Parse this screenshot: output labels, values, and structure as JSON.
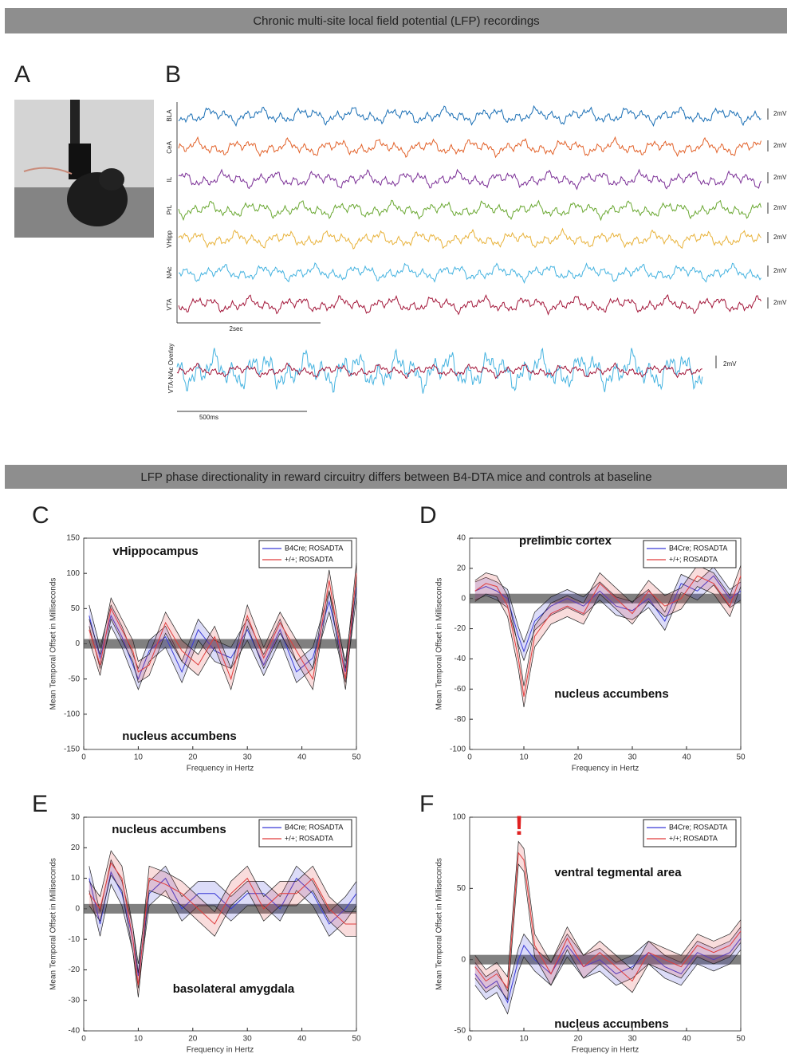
{
  "headers": [
    "Chronic multi-site local field potential (LFP) recordings",
    "LFP phase directionality in reward circuitry differs between B4-DTA mice and controls at baseline"
  ],
  "panel_labels": [
    "A",
    "B"
  ],
  "traces": {
    "channels": [
      {
        "name": "BLA",
        "color": "#1a6fb5"
      },
      {
        "name": "CeA",
        "color": "#e2622a"
      },
      {
        "name": "IL",
        "color": "#7b2f96"
      },
      {
        "name": "PrL",
        "color": "#6aa832"
      },
      {
        "name": "VHipp",
        "color": "#e8b23a"
      },
      {
        "name": "NAc",
        "color": "#45b3e0"
      },
      {
        "name": "VTA",
        "color": "#a3173a"
      }
    ],
    "scale_label": "2mV",
    "time_label": "2sec",
    "overlay": {
      "label": "VTA-NAc Overlay",
      "scale_label": "2mV",
      "time_label": "500ms"
    }
  },
  "chart_data": [
    {
      "type": "line",
      "label": "C",
      "annotations": [
        "vHippocampus",
        "nucleus accumbens"
      ],
      "x_label": "Frequency in Hertz",
      "y_label": "Mean Temporal Offset in Milliseconds",
      "xlim": [
        0,
        50
      ],
      "xticks": [
        0,
        10,
        20,
        30,
        40,
        50
      ],
      "ylim": [
        -150,
        150
      ],
      "yticks": [
        -150,
        -100,
        -50,
        0,
        50,
        100,
        150
      ],
      "legend": "upper right",
      "x": [
        1,
        3,
        5,
        7,
        9,
        10,
        12,
        15,
        18,
        21,
        24,
        27,
        30,
        33,
        36,
        39,
        42,
        45,
        48,
        50
      ],
      "series": [
        {
          "name": "B4Cre; ROSADTA",
          "color": "#3b3bd6",
          "error": 15,
          "values": [
            40,
            -20,
            40,
            10,
            -30,
            -50,
            -10,
            10,
            -40,
            20,
            -10,
            -20,
            20,
            -30,
            20,
            -40,
            -20,
            60,
            -40,
            80
          ]
        },
        {
          "name": "+/+; ROSADTA",
          "color": "#e03c3c",
          "error": 15,
          "values": [
            20,
            -30,
            50,
            20,
            -10,
            -40,
            -30,
            30,
            -10,
            -30,
            10,
            -50,
            40,
            -20,
            30,
            -10,
            -50,
            90,
            -50,
            100
          ]
        }
      ]
    },
    {
      "type": "line",
      "label": "D",
      "annotations": [
        "prelimbic cortex",
        "nucleus accumbens"
      ],
      "x_label": "Frequency in Hertz",
      "y_label": "Mean Temporal Offset in Milliseconds",
      "xlim": [
        0,
        50
      ],
      "xticks": [
        0,
        10,
        20,
        30,
        40,
        50
      ],
      "ylim": [
        -100,
        40
      ],
      "yticks": [
        -100,
        -80,
        -60,
        -40,
        -20,
        0,
        20,
        40
      ],
      "legend": "upper right",
      "x": [
        1,
        3,
        5,
        7,
        9,
        10,
        12,
        15,
        18,
        21,
        24,
        27,
        30,
        33,
        36,
        39,
        42,
        45,
        48,
        50
      ],
      "series": [
        {
          "name": "B4Cre; ROSADTA",
          "color": "#3b3bd6",
          "error": 6,
          "values": [
            5,
            8,
            5,
            0,
            -25,
            -35,
            -15,
            -5,
            0,
            -5,
            5,
            -5,
            -8,
            0,
            -15,
            10,
            5,
            15,
            0,
            5
          ]
        },
        {
          "name": "+/+; ROSADTA",
          "color": "#e03c3c",
          "error": 7,
          "values": [
            5,
            10,
            8,
            -5,
            -40,
            -65,
            -25,
            -10,
            -5,
            -10,
            10,
            0,
            -10,
            5,
            -5,
            0,
            15,
            10,
            -5,
            15
          ]
        }
      ]
    },
    {
      "type": "line",
      "label": "E",
      "annotations": [
        "nucleus accumbens",
        "basolateral amygdala"
      ],
      "x_label": "Frequency in Hertz",
      "y_label": "Mean Temporal Offset in Milliseconds",
      "xlim": [
        0,
        50
      ],
      "xticks": [
        0,
        10,
        20,
        30,
        40,
        50
      ],
      "ylim": [
        -40,
        30
      ],
      "yticks": [
        -40,
        -30,
        -20,
        -10,
        0,
        10,
        20,
        30
      ],
      "legend": "upper right",
      "x": [
        1,
        3,
        5,
        7,
        9,
        10,
        12,
        15,
        18,
        21,
        24,
        27,
        30,
        33,
        36,
        39,
        42,
        45,
        48,
        50
      ],
      "series": [
        {
          "name": "B4Cre; ROSADTA",
          "color": "#3b3bd6",
          "error": 4,
          "values": [
            10,
            -5,
            12,
            5,
            -10,
            -22,
            5,
            10,
            0,
            5,
            5,
            0,
            5,
            5,
            0,
            10,
            5,
            -5,
            0,
            5
          ]
        },
        {
          "name": "+/+; ROSADTA",
          "color": "#e03c3c",
          "error": 4,
          "values": [
            5,
            0,
            15,
            10,
            -10,
            -25,
            10,
            8,
            5,
            0,
            -5,
            5,
            10,
            0,
            5,
            5,
            10,
            0,
            -5,
            -5
          ]
        }
      ]
    },
    {
      "type": "line",
      "label": "F",
      "annotations": [
        "!",
        "ventral tegmental area",
        "nucleus accumbens"
      ],
      "x_label": "Frequency in Hertz",
      "y_label": "Mean Temporal Offset in Milliseconds",
      "xlim": [
        0,
        50
      ],
      "xticks": [
        0,
        10,
        20,
        30,
        40,
        50
      ],
      "ylim": [
        -50,
        100
      ],
      "yticks": [
        -50,
        0,
        50,
        100
      ],
      "legend": "upper right",
      "x": [
        1,
        3,
        5,
        7,
        9,
        10,
        12,
        15,
        18,
        21,
        24,
        27,
        30,
        33,
        36,
        39,
        42,
        45,
        48,
        50
      ],
      "series": [
        {
          "name": "B4Cre; ROSADTA",
          "color": "#3b3bd6",
          "error": 8,
          "values": [
            -10,
            -20,
            -15,
            -30,
            0,
            10,
            0,
            -10,
            10,
            -5,
            0,
            -10,
            -5,
            5,
            -5,
            -10,
            5,
            0,
            5,
            15
          ]
        },
        {
          "name": "+/+; ROSADTA",
          "color": "#e03c3c",
          "error": 8,
          "values": [
            -5,
            -15,
            -10,
            -20,
            75,
            70,
            10,
            -10,
            15,
            -5,
            5,
            -5,
            -15,
            5,
            0,
            -5,
            10,
            5,
            10,
            20
          ]
        }
      ]
    }
  ]
}
